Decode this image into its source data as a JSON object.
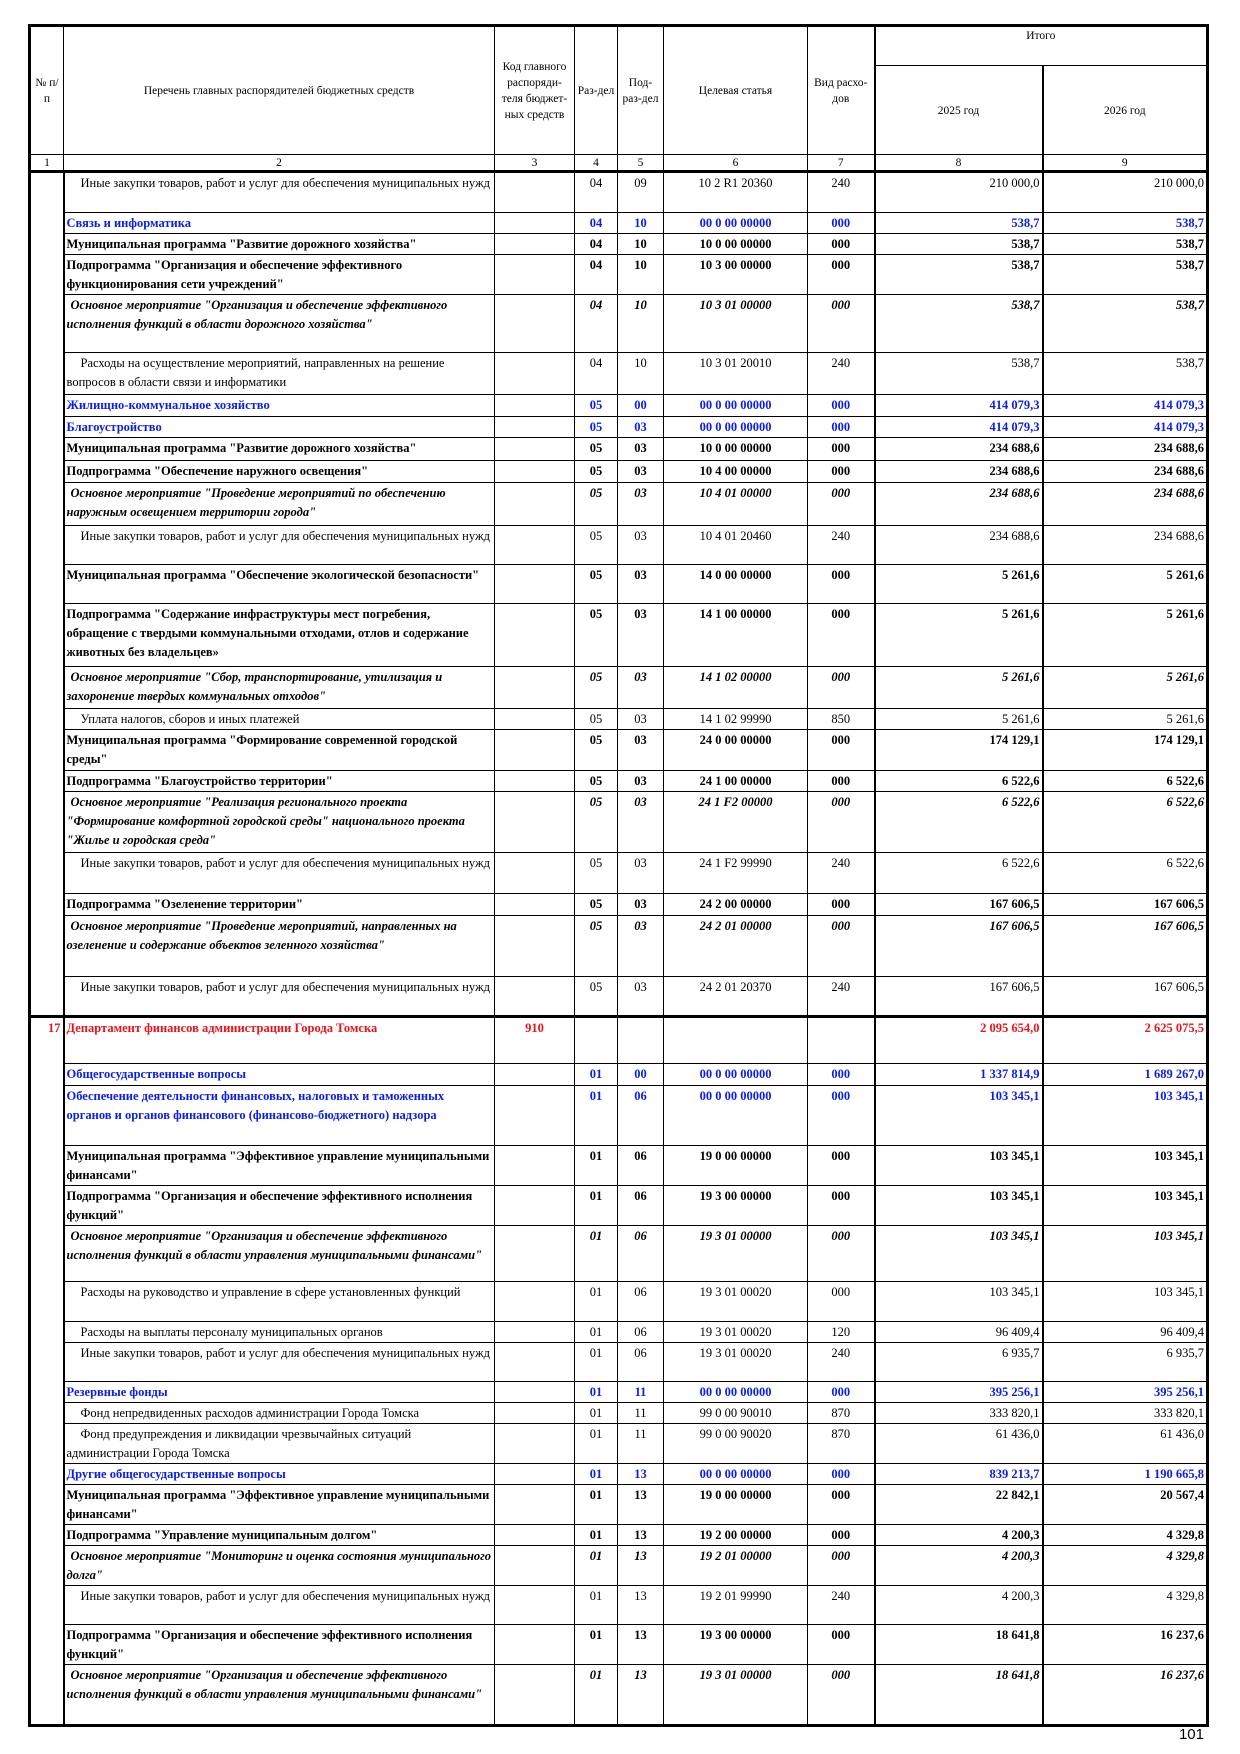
{
  "header": {
    "col1": "№ п/п",
    "col2": "Перечень главных распорядителей бюджетных средств",
    "col3": "Код главного распоряди-теля бюджет-ных средств",
    "col4": "Раз-дел",
    "col5": "Под-раз-дел",
    "col6": "Целевая статья",
    "col7": "Вид расхо-дов",
    "total": "Итого",
    "col8": "2025 год",
    "col9": "2026 год",
    "numbers": [
      "1",
      "2",
      "3",
      "4",
      "5",
      "6",
      "7",
      "8",
      "9"
    ]
  },
  "rows": [
    {
      "style": "normal",
      "no": "",
      "name": "Иные закупки товаров, работ и услуг для обеспечения муниципальных нужд",
      "code": "",
      "razdel": "04",
      "podrazdel": "09",
      "article": "10 2 R1 20360",
      "vid": "240",
      "y2025": "210 000,0",
      "y2026": "210 000,0"
    },
    {
      "style": "section",
      "no": "",
      "name": "Связь и информатика",
      "code": "",
      "razdel": "04",
      "podrazdel": "10",
      "article": "00 0 00 00000",
      "vid": "000",
      "y2025": "538,7",
      "y2026": "538,7"
    },
    {
      "style": "bold",
      "no": "",
      "name": "Муниципальная программа \"Развитие дорожного хозяйства\"",
      "code": "",
      "razdel": "04",
      "podrazdel": "10",
      "article": "10 0 00 00000",
      "vid": "000",
      "y2025": "538,7",
      "y2026": "538,7"
    },
    {
      "style": "bold",
      "no": "",
      "name": "Подпрограмма \"Организация и обеспечение эффективного функционирования сети учреждений\"",
      "code": "",
      "razdel": "04",
      "podrazdel": "10",
      "article": "10 3 00 00000",
      "vid": "000",
      "y2025": "538,7",
      "y2026": "538,7"
    },
    {
      "style": "italic",
      "no": "",
      "name": "Основное мероприятие \"Организация и обеспечение эффективного исполнения функций в области дорожного хозяйства\"",
      "code": "",
      "razdel": "04",
      "podrazdel": "10",
      "article": "10 3 01 00000",
      "vid": "000",
      "y2025": "538,7",
      "y2026": "538,7"
    },
    {
      "style": "normal",
      "no": "",
      "name": "Расходы на осуществление мероприятий, направленных на решение вопросов в области связи и информатики",
      "code": "",
      "razdel": "04",
      "podrazdel": "10",
      "article": "10 3 01 20010",
      "vid": "240",
      "y2025": "538,7",
      "y2026": "538,7"
    },
    {
      "style": "section",
      "no": "",
      "name": "Жилищно-коммунальное хозяйство",
      "code": "",
      "razdel": "05",
      "podrazdel": "00",
      "article": "00 0 00 00000",
      "vid": "000",
      "y2025": "414 079,3",
      "y2026": "414 079,3"
    },
    {
      "style": "section",
      "no": "",
      "name": "Благоустройство",
      "code": "",
      "razdel": "05",
      "podrazdel": "03",
      "article": "00 0 00 00000",
      "vid": "000",
      "y2025": "414 079,3",
      "y2026": "414 079,3"
    },
    {
      "style": "bold",
      "no": "",
      "name": "Муниципальная программа \"Развитие дорожного хозяйства\"",
      "code": "",
      "razdel": "05",
      "podrazdel": "03",
      "article": "10 0 00 00000",
      "vid": "000",
      "y2025": "234 688,6",
      "y2026": "234 688,6"
    },
    {
      "style": "bold",
      "no": "",
      "name": "Подпрограмма \"Обеспечение наружного освещения\"",
      "code": "",
      "razdel": "05",
      "podrazdel": "03",
      "article": "10 4 00 00000",
      "vid": "000",
      "y2025": "234 688,6",
      "y2026": "234 688,6"
    },
    {
      "style": "italic",
      "no": "",
      "name": "Основное мероприятие \"Проведение мероприятий по обеспечению наружным освещением территории города\"",
      "code": "",
      "razdel": "05",
      "podrazdel": "03",
      "article": "10 4 01 00000",
      "vid": "000",
      "y2025": "234 688,6",
      "y2026": "234 688,6"
    },
    {
      "style": "normal",
      "no": "",
      "name": "Иные закупки товаров, работ и услуг для обеспечения муниципальных нужд",
      "code": "",
      "razdel": "05",
      "podrazdel": "03",
      "article": "10 4 01 20460",
      "vid": "240",
      "y2025": "234 688,6",
      "y2026": "234 688,6"
    },
    {
      "style": "bold",
      "no": "",
      "name": "Муниципальная программа \"Обеспечение экологической безопасности\"",
      "code": "",
      "razdel": "05",
      "podrazdel": "03",
      "article": "14 0 00 00000",
      "vid": "000",
      "y2025": "5 261,6",
      "y2026": "5 261,6"
    },
    {
      "style": "bold",
      "no": "",
      "name": "Подпрограмма \"Содержание инфраструктуры мест погребения, обращение с твердыми коммунальными отходами, отлов и содержание животных без владельцев»",
      "code": "",
      "razdel": "05",
      "podrazdel": "03",
      "article": "14 1 00 00000",
      "vid": "000",
      "y2025": "5 261,6",
      "y2026": "5 261,6"
    },
    {
      "style": "italic",
      "no": "",
      "name": "Основное мероприятие \"Сбор, транспортирование, утилизация и захоронение твердых коммунальных отходов\"",
      "code": "",
      "razdel": "05",
      "podrazdel": "03",
      "article": "14 1 02 00000",
      "vid": "000",
      "y2025": "5 261,6",
      "y2026": "5 261,6"
    },
    {
      "style": "normal",
      "no": "",
      "name": "Уплата налогов, сборов и иных платежей",
      "code": "",
      "razdel": "05",
      "podrazdel": "03",
      "article": "14 1 02 99990",
      "vid": "850",
      "y2025": "5 261,6",
      "y2026": "5 261,6"
    },
    {
      "style": "bold",
      "no": "",
      "name": "Муниципальная программа \"Формирование современной городской среды\"",
      "code": "",
      "razdel": "05",
      "podrazdel": "03",
      "article": "24 0 00 00000",
      "vid": "000",
      "y2025": "174 129,1",
      "y2026": "174 129,1"
    },
    {
      "style": "bold",
      "no": "",
      "name": "Подпрограмма \"Благоустройство территории\"",
      "code": "",
      "razdel": "05",
      "podrazdel": "03",
      "article": "24 1 00 00000",
      "vid": "000",
      "y2025": "6 522,6",
      "y2026": "6 522,6"
    },
    {
      "style": "italic",
      "no": "",
      "name": "Основное мероприятие \"Реализация регионального проекта \"Формирование комфортной городской среды\" национального проекта \"Жилье и городская среда\"",
      "code": "",
      "razdel": "05",
      "podrazdel": "03",
      "article": "24 1 F2 00000",
      "vid": "000",
      "y2025": "6 522,6",
      "y2026": "6 522,6"
    },
    {
      "style": "normal",
      "no": "",
      "name": "Иные закупки товаров, работ и услуг для обеспечения муниципальных нужд",
      "code": "",
      "razdel": "05",
      "podrazdel": "03",
      "article": "24 1 F2 99990",
      "vid": "240",
      "y2025": "6 522,6",
      "y2026": "6 522,6"
    },
    {
      "style": "bold",
      "no": "",
      "name": "Подпрограмма \"Озеленение территории\"",
      "code": "",
      "razdel": "05",
      "podrazdel": "03",
      "article": "24 2 00 00000",
      "vid": "000",
      "y2025": "167 606,5",
      "y2026": "167 606,5"
    },
    {
      "style": "italic",
      "no": "",
      "name": "Основное мероприятие \"Проведение мероприятий, направленных на озеленение и содержание объектов зеленного хозяйства\"",
      "code": "",
      "razdel": "05",
      "podrazdel": "03",
      "article": "24 2 01 00000",
      "vid": "000",
      "y2025": "167 606,5",
      "y2026": "167 606,5"
    },
    {
      "style": "normal",
      "no": "",
      "name": "Иные закупки товаров, работ и услуг для обеспечения муниципальных нужд",
      "code": "",
      "razdel": "05",
      "podrazdel": "03",
      "article": "24 2 01 20370",
      "vid": "240",
      "y2025": "167 606,5",
      "y2026": "167 606,5"
    },
    {
      "style": "dept",
      "no": "17",
      "name": "Департамент финансов администрации Города Томска",
      "code": "910",
      "razdel": "",
      "podrazdel": "",
      "article": "",
      "vid": "",
      "y2025": "2 095 654,0",
      "y2026": "2 625 075,5"
    },
    {
      "style": "section",
      "no": "",
      "name": "Общегосударственные вопросы",
      "code": "",
      "razdel": "01",
      "podrazdel": "00",
      "article": "00 0 00 00000",
      "vid": "000",
      "y2025": "1 337 814,9",
      "y2026": "1 689 267,0"
    },
    {
      "style": "section",
      "no": "",
      "name": "Обеспечение деятельности финансовых, налоговых и таможенных органов и органов финансового (финансово-бюджетного) надзора",
      "code": "",
      "razdel": "01",
      "podrazdel": "06",
      "article": "00 0 00 00000",
      "vid": "000",
      "y2025": "103 345,1",
      "y2026": "103 345,1"
    },
    {
      "style": "bold",
      "no": "",
      "name": "Муниципальная программа \"Эффективное управление муниципальными финансами\"",
      "code": "",
      "razdel": "01",
      "podrazdel": "06",
      "article": "19 0 00 00000",
      "vid": "000",
      "y2025": "103 345,1",
      "y2026": "103 345,1"
    },
    {
      "style": "bold",
      "no": "",
      "name": "Подпрограмма \"Организация и обеспечение эффективного исполнения функций\"",
      "code": "",
      "razdel": "01",
      "podrazdel": "06",
      "article": "19 3 00 00000",
      "vid": "000",
      "y2025": "103 345,1",
      "y2026": "103 345,1"
    },
    {
      "style": "italic",
      "no": "",
      "name": "Основное мероприятие \"Организация и обеспечение эффективного исполнения функций в области управления муниципальными финансами\"",
      "code": "",
      "razdel": "01",
      "podrazdel": "06",
      "article": "19 3 01 00000",
      "vid": "000",
      "y2025": "103 345,1",
      "y2026": "103 345,1"
    },
    {
      "style": "normal",
      "no": "",
      "name": "Расходы на руководство и управление в сфере установленных функций",
      "code": "",
      "razdel": "01",
      "podrazdel": "06",
      "article": "19 3 01 00020",
      "vid": "000",
      "y2025": "103 345,1",
      "y2026": "103 345,1"
    },
    {
      "style": "normal",
      "no": "",
      "name": "Расходы на выплаты персоналу муниципальных органов",
      "code": "",
      "razdel": "01",
      "podrazdel": "06",
      "article": "19 3 01 00020",
      "vid": "120",
      "y2025": "96 409,4",
      "y2026": "96 409,4"
    },
    {
      "style": "normal",
      "no": "",
      "name": "Иные закупки товаров, работ и услуг для обеспечения муниципальных нужд",
      "code": "",
      "razdel": "01",
      "podrazdel": "06",
      "article": "19 3 01 00020",
      "vid": "240",
      "y2025": "6 935,7",
      "y2026": "6 935,7"
    },
    {
      "style": "section",
      "no": "",
      "name": "Резервные фонды",
      "code": "",
      "razdel": "01",
      "podrazdel": "11",
      "article": "00 0 00 00000",
      "vid": "000",
      "y2025": "395 256,1",
      "y2026": "395 256,1"
    },
    {
      "style": "normal",
      "no": "",
      "name": "Фонд непредвиденных расходов администрации Города Томска",
      "code": "",
      "razdel": "01",
      "podrazdel": "11",
      "article": "99 0 00 90010",
      "vid": "870",
      "y2025": "333 820,1",
      "y2026": "333 820,1"
    },
    {
      "style": "normal",
      "no": "",
      "name": "Фонд предупреждения и ликвидации чрезвычайных ситуаций администрации Города Томска",
      "code": "",
      "razdel": "01",
      "podrazdel": "11",
      "article": "99 0 00 90020",
      "vid": "870",
      "y2025": "61 436,0",
      "y2026": "61 436,0"
    },
    {
      "style": "section",
      "no": "",
      "name": "Другие общегосударственные вопросы",
      "code": "",
      "razdel": "01",
      "podrazdel": "13",
      "article": "00 0 00 00000",
      "vid": "000",
      "y2025": "839 213,7",
      "y2026": "1 190 665,8"
    },
    {
      "style": "bold",
      "no": "",
      "name": "Муниципальная программа \"Эффективное управление муниципальными финансами\"",
      "code": "",
      "razdel": "01",
      "podrazdel": "13",
      "article": "19 0 00 00000",
      "vid": "000",
      "y2025": "22 842,1",
      "y2026": "20 567,4"
    },
    {
      "style": "bold",
      "no": "",
      "name": "Подпрограмма \"Управление муниципальным долгом\"",
      "code": "",
      "razdel": "01",
      "podrazdel": "13",
      "article": "19 2 00 00000",
      "vid": "000",
      "y2025": "4 200,3",
      "y2026": "4 329,8"
    },
    {
      "style": "italic",
      "no": "",
      "name": "Основное мероприятие \"Мониторинг и оценка состояния муниципального долга\"",
      "code": "",
      "razdel": "01",
      "podrazdel": "13",
      "article": "19 2 01 00000",
      "vid": "000",
      "y2025": "4 200,3",
      "y2026": "4 329,8"
    },
    {
      "style": "normal",
      "no": "",
      "name": "Иные закупки товаров, работ и услуг для обеспечения муниципальных нужд",
      "code": "",
      "razdel": "01",
      "podrazdel": "13",
      "article": "19 2 01 99990",
      "vid": "240",
      "y2025": "4 200,3",
      "y2026": "4 329,8"
    },
    {
      "style": "bold",
      "no": "",
      "name": "Подпрограмма \"Организация и обеспечение эффективного исполнения функций\"",
      "code": "",
      "razdel": "01",
      "podrazdel": "13",
      "article": "19 3 00 00000",
      "vid": "000",
      "y2025": "18 641,8",
      "y2026": "16 237,6"
    },
    {
      "style": "italic",
      "no": "",
      "name": "Основное мероприятие \"Организация и обеспечение эффективного исполнения функций в области управления муниципальными финансами\"",
      "code": "",
      "razdel": "01",
      "podrazdel": "13",
      "article": "19 3 01 00000",
      "vid": "000",
      "y2025": "18 641,8",
      "y2026": "16 237,6"
    }
  ],
  "page_number": "101"
}
